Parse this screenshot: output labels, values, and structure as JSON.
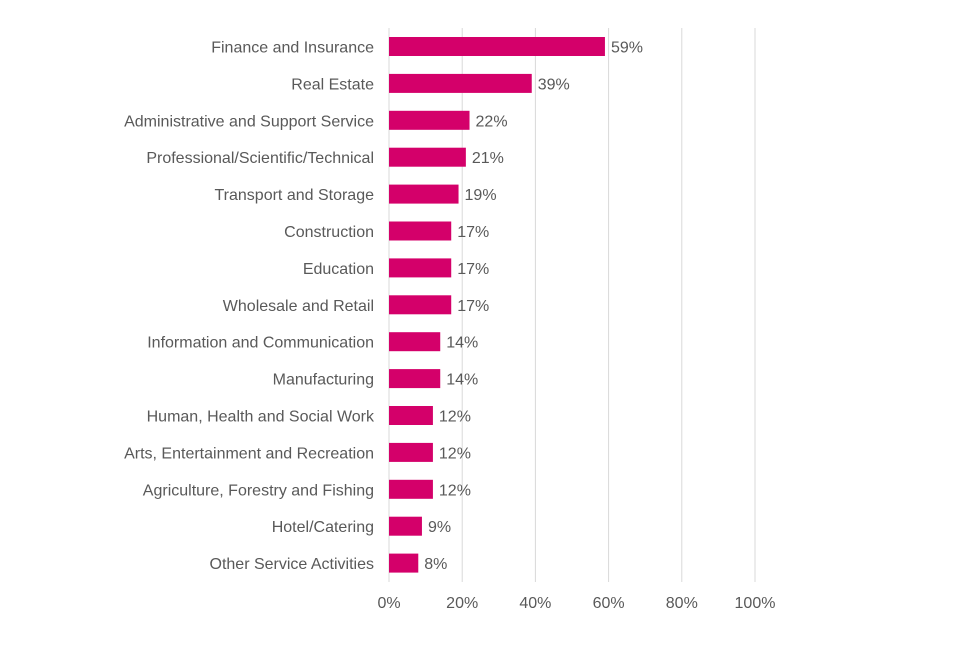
{
  "chart_data": {
    "type": "bar",
    "orientation": "horizontal",
    "title": "",
    "xlabel": "",
    "ylabel": "",
    "categories": [
      "Finance and Insurance",
      "Real Estate",
      "Administrative and Support Service",
      "Professional/Scientific/Technical",
      "Transport and Storage",
      "Construction",
      "Education",
      "Wholesale and Retail",
      "Information and Communication",
      "Manufacturing",
      "Human, Health and Social Work",
      "Arts, Entertainment and Recreation",
      "Agriculture, Forestry and Fishing",
      "Hotel/Catering",
      "Other Service Activities"
    ],
    "values": [
      59,
      39,
      22,
      21,
      19,
      17,
      17,
      17,
      14,
      14,
      12,
      12,
      12,
      9,
      8
    ],
    "data_labels": [
      "59%",
      "39%",
      "22%",
      "21%",
      "19%",
      "17%",
      "17%",
      "17%",
      "14%",
      "14%",
      "12%",
      "12%",
      "12%",
      "9%",
      "8%"
    ],
    "xlim": [
      0,
      100
    ],
    "xticks": [
      0,
      20,
      40,
      60,
      80,
      100
    ],
    "xtick_labels": [
      "0%",
      "20%",
      "40%",
      "60%",
      "80%",
      "100%"
    ],
    "grid": true,
    "legend": "none",
    "colors": {
      "bar": "#d4006a",
      "grid": "#d9d9d9",
      "text": "#595959"
    }
  }
}
